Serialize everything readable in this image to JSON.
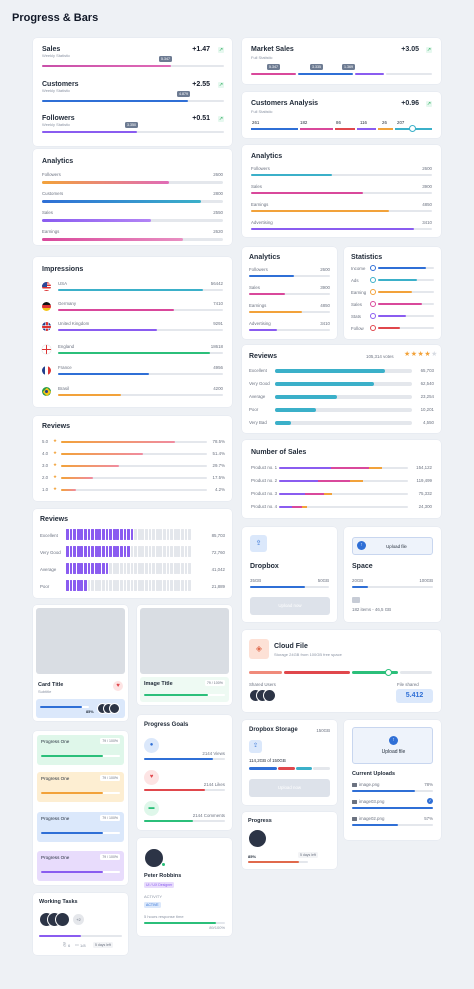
{
  "page_title": "Progress & Bars",
  "colors": {
    "accent": "#2f6fd6",
    "pink": "#d9489b",
    "orange": "#f2a23a",
    "purple": "#8a5cf0",
    "teal": "#3bb0c9",
    "green": "#2bbf7a",
    "red": "#e0474c"
  },
  "sales_card": {
    "rows": [
      {
        "title": "Sales",
        "subtitle": "Weekly Statistic",
        "delta": "+1.47",
        "chip": "5.347"
      },
      {
        "title": "Customers",
        "subtitle": "Weekly Statistic",
        "delta": "+2.55",
        "chip": "4.879"
      },
      {
        "title": "Followers",
        "subtitle": "Weekly Statistic",
        "delta": "+0.51",
        "chip": "3.350"
      }
    ]
  },
  "market_sales": {
    "title": "Market Sales",
    "subtitle": "Full Statistic",
    "delta": "+3.05",
    "chips": [
      "5.347",
      "3.335",
      "1.369"
    ]
  },
  "customers_analysis": {
    "title": "Customers Analysis",
    "subtitle": "Full Statistic",
    "delta": "+0.96",
    "values": [
      "261",
      "182",
      "86",
      "116",
      "26",
      "207"
    ]
  },
  "analytics_left": {
    "title": "Analytics",
    "rows": [
      {
        "label": "Followers",
        "value": "2600"
      },
      {
        "label": "Customers",
        "value": "2800"
      },
      {
        "label": "Sales",
        "value": "2550"
      },
      {
        "label": "Earnings",
        "value": "2620"
      }
    ]
  },
  "analytics_right": {
    "title": "Analytics",
    "rows": [
      {
        "label": "Followers",
        "value": "2600"
      },
      {
        "label": "Sales",
        "value": "3900"
      },
      {
        "label": "Earnings",
        "value": "4850"
      },
      {
        "label": "Advertising",
        "value": "3410"
      }
    ]
  },
  "impressions": {
    "title": "Impressions",
    "rows": [
      {
        "label": "USA",
        "value": "56442"
      },
      {
        "label": "Germany",
        "value": "7410"
      },
      {
        "label": "United Kingdom",
        "value": "9291"
      },
      {
        "label": "England",
        "value": "18618"
      },
      {
        "label": "France",
        "value": "4956"
      },
      {
        "label": "Brasil",
        "value": "4200"
      }
    ]
  },
  "analytics_small": {
    "title": "Analytics",
    "rows": [
      {
        "label": "Followers",
        "value": "2600"
      },
      {
        "label": "Sales",
        "value": "3900"
      },
      {
        "label": "Earnings",
        "value": "4850"
      },
      {
        "label": "Advertising",
        "value": "3410"
      }
    ]
  },
  "statistics": {
    "title": "Statistics",
    "rows": [
      {
        "label": "Income"
      },
      {
        "label": "Ads"
      },
      {
        "label": "Earning"
      },
      {
        "label": "Sales"
      },
      {
        "label": "Stats"
      },
      {
        "label": "Follow"
      }
    ]
  },
  "reviews_right": {
    "title": "Reviews",
    "votes": "105,314 votes",
    "rows": [
      {
        "label": "Excellent",
        "value": "65,703"
      },
      {
        "label": "Very Good",
        "value": "62,540"
      },
      {
        "label": "Average",
        "value": "23,254"
      },
      {
        "label": "Poor",
        "value": "10,201"
      },
      {
        "label": "Very Bad",
        "value": "4,550"
      }
    ]
  },
  "reviews_left": {
    "title": "Reviews",
    "rows": [
      {
        "label": "5.0",
        "value": "78.5%"
      },
      {
        "label": "4.0",
        "value": "51.4%"
      },
      {
        "label": "3.0",
        "value": "29.7%"
      },
      {
        "label": "2.0",
        "value": "17.5%"
      },
      {
        "label": "1.0",
        "value": "4.2%"
      }
    ]
  },
  "sales_number": {
    "title": "Number of Sales",
    "rows": [
      {
        "label": "Product no. 1",
        "value": "154,122"
      },
      {
        "label": "Product no. 2",
        "value": "119,499"
      },
      {
        "label": "Product no. 3",
        "value": "75,332"
      },
      {
        "label": "Product no. 4",
        "value": "24,300"
      }
    ]
  },
  "reviews_seg": {
    "title": "Reviews",
    "rows": [
      {
        "label": "Excellent",
        "value": "85,703"
      },
      {
        "label": "Very Good",
        "value": "72,760"
      },
      {
        "label": "Average",
        "value": "41,042"
      },
      {
        "label": "Poor",
        "value": "21,889"
      }
    ]
  },
  "dropbox": {
    "title": "Dropbox",
    "used": "35GB",
    "total": "50GB",
    "button": "Upload now"
  },
  "space": {
    "title": "Space",
    "used": "20GB",
    "total": "100GB",
    "button": "Upload file",
    "items": "182 items - 46,5 GB"
  },
  "cloud_file": {
    "title": "Cloud File",
    "subtitle": "Storage 24GB from 100GB free space",
    "users_label": "Shared Users",
    "shared_label": "File shared",
    "shared_value": "5.412"
  },
  "card_title": {
    "title": "Card Title",
    "subtitle": "Subtitle",
    "percent": "85%"
  },
  "image_title": {
    "title": "Image Title",
    "badge": "79 / 100%"
  },
  "progress_goals": {
    "title": "Progress Goals",
    "rows": [
      {
        "value": "2144 Views"
      },
      {
        "value": "2144 Likes"
      },
      {
        "value": "2144 Comments"
      }
    ]
  },
  "dropbox_storage": {
    "title": "Dropbox Storage",
    "size": "150GB",
    "used": "114,2GB of 150GB",
    "button": "Upload now"
  },
  "upload": {
    "button": "Upload file",
    "uploads_title": "Current Uploads",
    "files": [
      {
        "name": "image.png",
        "value": "78%"
      },
      {
        "name": "image03.png",
        "value": ""
      },
      {
        "name": "image02.png",
        "value": "57%"
      }
    ]
  },
  "progress_one": {
    "rows": [
      {
        "title": "Progress One",
        "badge": "79 / 100%"
      },
      {
        "title": "Progress One",
        "badge": "79 / 100%"
      },
      {
        "title": "Progress One",
        "badge": "79 / 100%"
      },
      {
        "title": "Progress One",
        "badge": "79 / 100%"
      }
    ]
  },
  "progress_small": {
    "title": "Progress",
    "percent": "85%",
    "badge": "5 days left"
  },
  "working_tasks": {
    "title": "Working Tasks",
    "more": "+2",
    "attach": "6",
    "comments": "1/8",
    "badge": "5 days left"
  },
  "profile": {
    "name": "Peter Robbins",
    "role": "UI / UX Designer",
    "activity_label": "ACTIVITY",
    "status": "ACTIVE",
    "response": "5 hours response time",
    "percent": "89/100%"
  }
}
